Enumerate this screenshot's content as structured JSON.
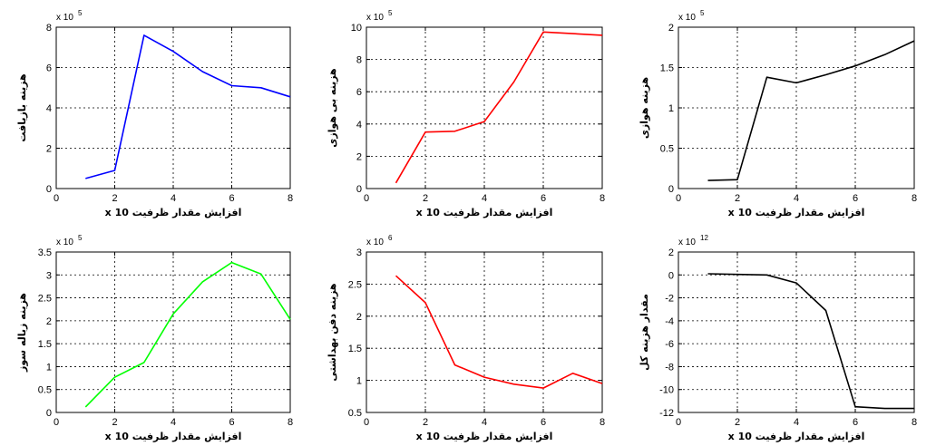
{
  "chart_data": [
    {
      "type": "line",
      "xlabel": "افزایش مقدار ظرفیت x 10",
      "ylabel": "هزینه بازیافت",
      "multiplier": "x 10",
      "exponent": "5",
      "xlim": [
        0,
        8
      ],
      "ylim": [
        0,
        8
      ],
      "xticks": [
        "0",
        "2",
        "4",
        "6",
        "8"
      ],
      "yticks": [
        "0",
        "2",
        "4",
        "6",
        "8"
      ],
      "grid": true,
      "color": "#0000ff",
      "series": [
        {
          "x": [
            1,
            2,
            3,
            4,
            5,
            6,
            7,
            8
          ],
          "y": [
            0.5,
            0.9,
            7.6,
            6.8,
            5.8,
            5.1,
            5.0,
            4.55
          ]
        }
      ]
    },
    {
      "type": "line",
      "xlabel": "افزایش مقدار ظرفیت x 10",
      "ylabel": "هزینه بی هوازی",
      "multiplier": "x 10",
      "exponent": "5",
      "xlim": [
        0,
        8
      ],
      "ylim": [
        0,
        10
      ],
      "xticks": [
        "0",
        "2",
        "4",
        "6",
        "8"
      ],
      "yticks": [
        "0",
        "2",
        "4",
        "6",
        "8",
        "10"
      ],
      "grid": true,
      "color": "#ff0000",
      "series": [
        {
          "x": [
            1,
            2,
            3,
            4,
            5,
            6,
            7,
            8
          ],
          "y": [
            0.35,
            3.5,
            3.55,
            4.15,
            6.6,
            9.7,
            9.6,
            9.5
          ]
        }
      ]
    },
    {
      "type": "line",
      "xlabel": "افزایش مقدار ظرفیت x 10",
      "ylabel": "هزینه هوازی",
      "multiplier": "x 10",
      "exponent": "5",
      "xlim": [
        0,
        8
      ],
      "ylim": [
        0,
        2
      ],
      "xticks": [
        "0",
        "2",
        "4",
        "6",
        "8"
      ],
      "yticks": [
        "0",
        "0.5",
        "1",
        "1.5",
        "2"
      ],
      "grid": true,
      "color": "#000000",
      "series": [
        {
          "x": [
            1,
            2,
            3,
            4,
            5,
            6,
            7,
            8
          ],
          "y": [
            0.1,
            0.11,
            1.38,
            1.31,
            1.41,
            1.52,
            1.66,
            1.83
          ]
        }
      ]
    },
    {
      "type": "line",
      "xlabel": "افزایش مقدار ظرفیت x 10",
      "ylabel": "هزینه زباله سوز",
      "multiplier": "x 10",
      "exponent": "5",
      "xlim": [
        0,
        8
      ],
      "ylim": [
        0,
        3.5
      ],
      "xticks": [
        "0",
        "2",
        "4",
        "6",
        "8"
      ],
      "yticks": [
        "0",
        "0.5",
        "1",
        "1.5",
        "2",
        "2.5",
        "3",
        "3.5"
      ],
      "grid": true,
      "color": "#00ff00",
      "series": [
        {
          "x": [
            1,
            2,
            3,
            4,
            5,
            6,
            7,
            8
          ],
          "y": [
            0.12,
            0.77,
            1.09,
            2.15,
            2.85,
            3.27,
            3.02,
            2.03
          ]
        }
      ]
    },
    {
      "type": "line",
      "xlabel": "افزایش مقدار ظرفیت x 10",
      "ylabel": "هزینه دفن بهداشتی",
      "multiplier": "x 10",
      "exponent": "6",
      "xlim": [
        0,
        8
      ],
      "ylim": [
        0.5,
        3
      ],
      "xticks": [
        "0",
        "2",
        "4",
        "6",
        "8"
      ],
      "yticks": [
        "0.5",
        "1",
        "1.5",
        "2",
        "2.5",
        "3"
      ],
      "grid": true,
      "color": "#ff0000",
      "series": [
        {
          "x": [
            1,
            2,
            3,
            4,
            5,
            6,
            7,
            8
          ],
          "y": [
            2.63,
            2.21,
            1.24,
            1.05,
            0.94,
            0.88,
            1.11,
            0.95
          ]
        }
      ]
    },
    {
      "type": "line",
      "xlabel": "افزایش مقدار ظرفیت x 10",
      "ylabel": "مقدار هزینه کل",
      "multiplier": "x 10",
      "exponent": "12",
      "xlim": [
        0,
        8
      ],
      "ylim": [
        -12,
        2
      ],
      "xticks": [
        "0",
        "2",
        "4",
        "6",
        "8"
      ],
      "yticks": [
        "-12",
        "-10",
        "-8",
        "-6",
        "-4",
        "-2",
        "0",
        "2"
      ],
      "grid": true,
      "color": "#000000",
      "series": [
        {
          "x": [
            1,
            2,
            3,
            4,
            5,
            6,
            7,
            8
          ],
          "y": [
            0.1,
            0.05,
            0.0,
            -0.7,
            -3.1,
            -11.5,
            -11.65,
            -11.65
          ]
        }
      ]
    }
  ]
}
